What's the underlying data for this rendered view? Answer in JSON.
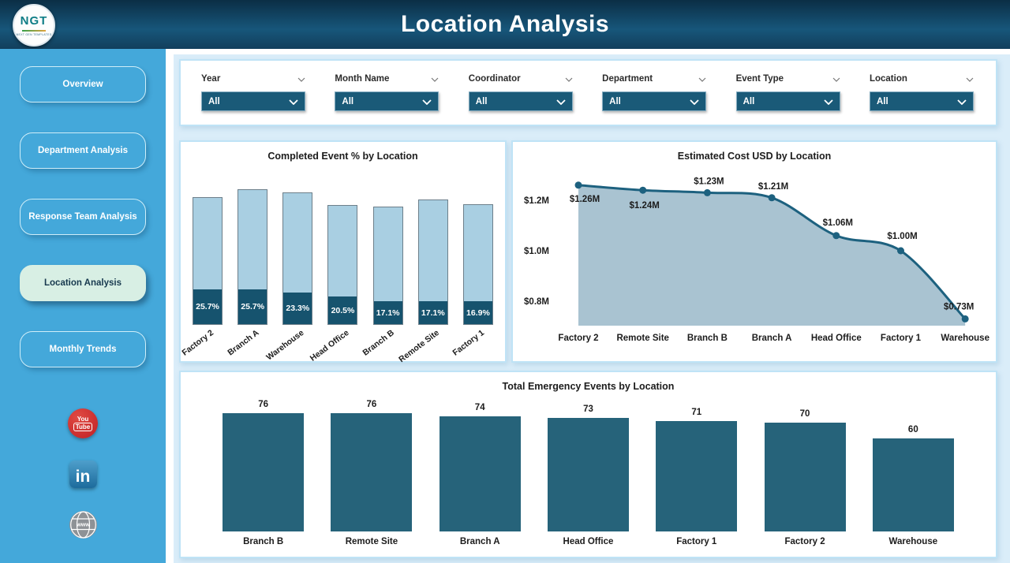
{
  "header": {
    "title": "Location Analysis",
    "logo_text": "NGT",
    "logo_subtext": "NEXT GEN TEMPLATES"
  },
  "sidebar": {
    "items": [
      {
        "label": "Overview",
        "active": false
      },
      {
        "label": "Department Analysis",
        "active": false
      },
      {
        "label": "Response Team Analysis",
        "active": false
      },
      {
        "label": "Location Analysis",
        "active": true
      },
      {
        "label": "Monthly Trends",
        "active": false
      }
    ],
    "social": [
      {
        "name": "youtube",
        "line1": "You",
        "line2": "Tube"
      },
      {
        "name": "linkedin",
        "label": "in"
      },
      {
        "name": "website",
        "label": "www"
      }
    ]
  },
  "filters": [
    {
      "label": "Year",
      "value": "All"
    },
    {
      "label": "Month Name",
      "value": "All"
    },
    {
      "label": "Coordinator",
      "value": "All"
    },
    {
      "label": "Department",
      "value": "All"
    },
    {
      "label": "Event Type",
      "value": "All"
    },
    {
      "label": "Location",
      "value": "All"
    }
  ],
  "chart_data": [
    {
      "type": "bar",
      "title": "Completed Event % by Location",
      "categories": [
        "Factory 2",
        "Branch A",
        "Warehouse",
        "Head Office",
        "Branch B",
        "Remote Site",
        "Factory 1"
      ],
      "series": [
        {
          "name": "Completed %",
          "values": [
            25.7,
            25.7,
            23.3,
            20.5,
            17.1,
            17.1,
            16.9
          ]
        },
        {
          "name": "Total bar relative height",
          "values": [
            0.94,
            1.0,
            0.975,
            0.885,
            0.87,
            0.925,
            0.89
          ]
        }
      ],
      "value_labels": [
        "25.7%",
        "25.7%",
        "23.3%",
        "20.5%",
        "17.1%",
        "17.1%",
        "16.9%"
      ],
      "legend": "off",
      "grid": "off"
    },
    {
      "type": "area",
      "title": "Estimated Cost USD by Location",
      "categories": [
        "Factory 2",
        "Remote Site",
        "Branch B",
        "Branch A",
        "Head Office",
        "Factory 1",
        "Warehouse"
      ],
      "values": [
        1.26,
        1.24,
        1.23,
        1.21,
        1.06,
        1.0,
        0.73
      ],
      "value_labels": [
        "$1.26M",
        "$1.24M",
        "$1.23M",
        "$1.21M",
        "$1.06M",
        "$1.00M",
        "$0.73M"
      ],
      "ytick_labels": [
        "$1.2M",
        "$1.0M",
        "$0.8M"
      ],
      "ytick_values": [
        1.2,
        1.0,
        0.8
      ],
      "ylim": [
        0.7,
        1.32
      ],
      "legend": "off",
      "grid": "off"
    },
    {
      "type": "bar",
      "title": "Total Emergency Events by Location",
      "categories": [
        "Branch B",
        "Remote Site",
        "Branch A",
        "Head Office",
        "Factory 1",
        "Factory 2",
        "Warehouse"
      ],
      "values": [
        76,
        76,
        74,
        73,
        71,
        70,
        60
      ],
      "ylim": [
        0,
        76
      ],
      "legend": "off",
      "grid": "off"
    }
  ],
  "colors": {
    "header_top": "#0b2e45",
    "header_bottom": "#17567a",
    "sidebar_blue": "#44a8da",
    "nav_active_bg": "#d8efe4",
    "nav_active_text": "#17394e",
    "panel_bg": "#daedf9",
    "card_border": "#bfe3f6",
    "slicer_bg": "#1a5a78",
    "bar_light": "#a9cfe2",
    "bar_dark": "#16536e",
    "bar_solid": "#26637a",
    "line": "#1d617f",
    "area_fill": "#a4c0cf",
    "youtube_red": "#c01f24",
    "linkedin_blue": "#1d6b9c"
  }
}
